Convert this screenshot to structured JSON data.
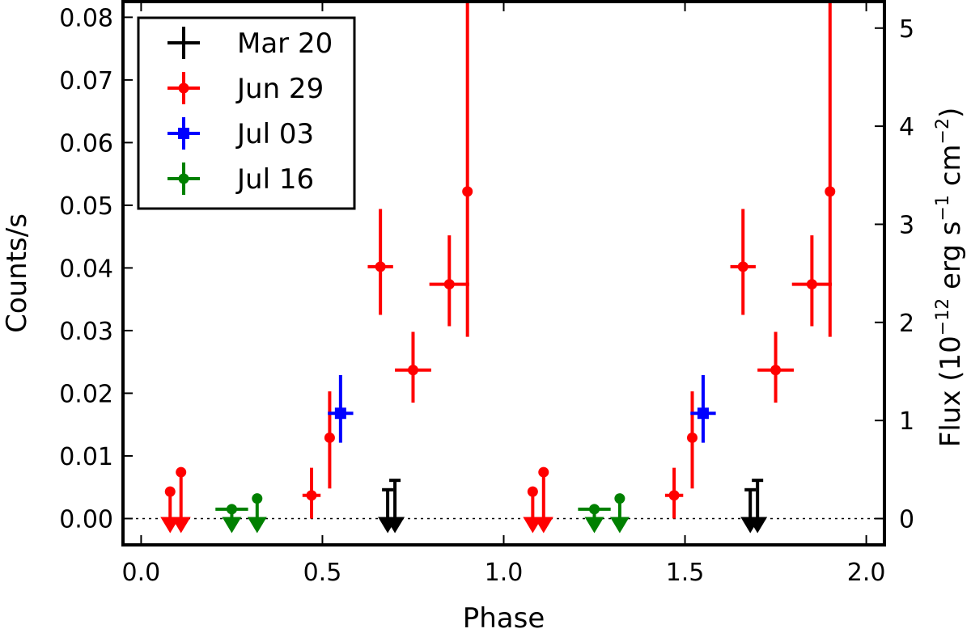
{
  "chart_data": {
    "type": "scatter",
    "xlabel": "Phase",
    "ylabel": "Counts/s",
    "ylabel_right_main": "Flux (10",
    "ylabel_right_exp1": "−12",
    "ylabel_right_mid": " erg s",
    "ylabel_right_exp2": "−1",
    "ylabel_right_mid2": " cm",
    "ylabel_right_exp3": "−2",
    "ylabel_right_close": ")",
    "xlim": [
      -0.05,
      2.05
    ],
    "ylim": [
      -0.0042,
      0.0825
    ],
    "flux_lim": [
      -0.268,
      5.27
    ],
    "x_ticks": [
      "0.0",
      "0.5",
      "1.0",
      "1.5",
      "2.0"
    ],
    "x_tick_values": [
      0.0,
      0.5,
      1.0,
      1.5,
      2.0
    ],
    "y_ticks": [
      "0.00",
      "0.01",
      "0.02",
      "0.03",
      "0.04",
      "0.05",
      "0.06",
      "0.07",
      "0.08"
    ],
    "y_tick_values": [
      0.0,
      0.01,
      0.02,
      0.03,
      0.04,
      0.05,
      0.06,
      0.07,
      0.08
    ],
    "y2_ticks": [
      "0",
      "1",
      "2",
      "3",
      "4",
      "5"
    ],
    "y2_tick_values": [
      0,
      1,
      2,
      3,
      4,
      5
    ],
    "zero_line": true,
    "legend_position": "top-left",
    "series": [
      {
        "name": "Mar 20",
        "color": "#000000",
        "marker": "none",
        "points": [],
        "upper_limits": [
          {
            "x": 0.68,
            "y": 0.0046
          },
          {
            "x": 0.7,
            "y": 0.0061
          },
          {
            "x": 1.68,
            "y": 0.0046
          },
          {
            "x": 1.7,
            "y": 0.0061
          }
        ]
      },
      {
        "name": "Jun 29",
        "color": "#ff0000",
        "marker": "circle",
        "points": [
          {
            "x": 0.47,
            "y": 0.0037,
            "xerr": 0.025,
            "ylo": 0.0,
            "yhi": 0.0081
          },
          {
            "x": 0.52,
            "y": 0.0129,
            "xerr": 0.0,
            "ylo": 0.0048,
            "yhi": 0.0203
          },
          {
            "x": 0.66,
            "y": 0.0402,
            "xerr": 0.035,
            "ylo": 0.0325,
            "yhi": 0.0494
          },
          {
            "x": 0.75,
            "y": 0.0237,
            "xerr": 0.05,
            "ylo": 0.0185,
            "yhi": 0.0298
          },
          {
            "x": 0.85,
            "y": 0.0374,
            "xerr": 0.055,
            "ylo": 0.0307,
            "yhi": 0.0452
          },
          {
            "x": 0.9,
            "y": 0.0522,
            "xerr": 0.0,
            "ylo": 0.029,
            "yhi": 0.0825
          },
          {
            "x": 1.47,
            "y": 0.0037,
            "xerr": 0.025,
            "ylo": 0.0,
            "yhi": 0.0081
          },
          {
            "x": 1.52,
            "y": 0.0129,
            "xerr": 0.0,
            "ylo": 0.0048,
            "yhi": 0.0203
          },
          {
            "x": 1.66,
            "y": 0.0402,
            "xerr": 0.035,
            "ylo": 0.0325,
            "yhi": 0.0494
          },
          {
            "x": 1.75,
            "y": 0.0237,
            "xerr": 0.05,
            "ylo": 0.0185,
            "yhi": 0.0298
          },
          {
            "x": 1.85,
            "y": 0.0374,
            "xerr": 0.055,
            "ylo": 0.0307,
            "yhi": 0.0452
          },
          {
            "x": 1.9,
            "y": 0.0522,
            "xerr": 0.0,
            "ylo": 0.029,
            "yhi": 0.0825
          }
        ],
        "upper_limits": [
          {
            "x": 0.08,
            "y": 0.0043
          },
          {
            "x": 0.11,
            "y": 0.0074
          },
          {
            "x": 1.08,
            "y": 0.0043
          },
          {
            "x": 1.11,
            "y": 0.0074
          }
        ]
      },
      {
        "name": "Jul 03",
        "color": "#0000ff",
        "marker": "square",
        "points": [
          {
            "x": 0.55,
            "y": 0.0168,
            "xerr": 0.035,
            "ylo": 0.0121,
            "yhi": 0.0229
          },
          {
            "x": 1.55,
            "y": 0.0168,
            "xerr": 0.035,
            "ylo": 0.0121,
            "yhi": 0.0229
          }
        ],
        "upper_limits": []
      },
      {
        "name": "Jul 16",
        "color": "#008000",
        "marker": "circle",
        "points": [],
        "upper_limits": [
          {
            "x": 0.25,
            "y": 0.0015,
            "xerr": 0.045
          },
          {
            "x": 0.32,
            "y": 0.0032,
            "xerr": 0.0
          },
          {
            "x": 1.25,
            "y": 0.0015,
            "xerr": 0.045
          },
          {
            "x": 1.32,
            "y": 0.0032,
            "xerr": 0.0
          }
        ]
      }
    ]
  }
}
